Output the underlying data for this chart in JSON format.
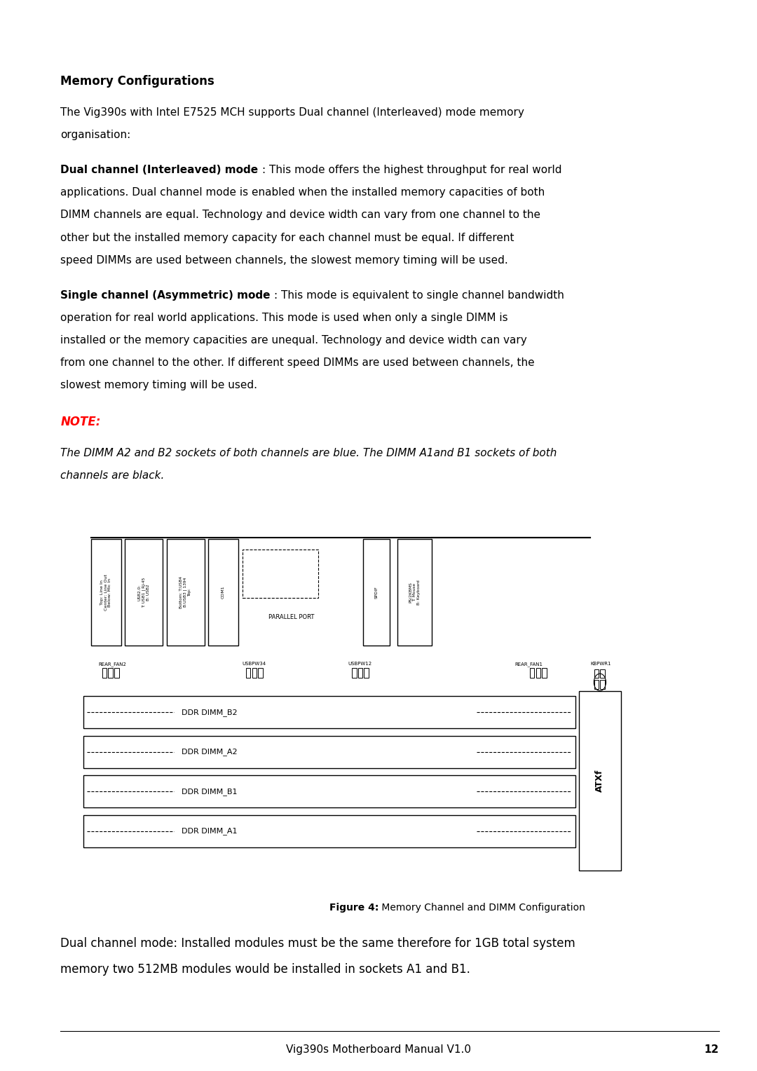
{
  "bg_color": "#ffffff",
  "text_color": "#000000",
  "page_width": 10.8,
  "page_height": 15.28,
  "title": "Memory Configurations",
  "intro": "The Vig390s with Intel E7525 MCH supports Dual channel (Interleaved) mode memory organisation:",
  "dual_channel_bold": "Dual channel (Interleaved) mode",
  "dual_channel_text": ": This mode offers the highest throughput for real world applications. Dual channel mode is enabled when the installed memory capacities of both DIMM channels are equal. Technology and device width can vary from one channel to the other but the installed memory capacity for each channel must be equal. If different speed DIMMs are used between channels, the slowest memory timing will be used.",
  "single_channel_bold": "Single channel (Asymmetric) mode",
  "single_channel_text": ": This mode is equivalent to single channel bandwidth operation for real world applications. This mode is used when only a single DIMM is installed or the memory capacities are unequal. Technology and device width can vary from one channel to the other. If different speed DIMMs are used between channels, the slowest memory timing will be used.",
  "note_label": "NOTE:",
  "note_text": "The DIMM A2 and B2 sockets of both channels are blue. The DIMM A1and B1 sockets of both channels are black.",
  "figure_bold": "Figure 4:",
  "figure_text": " Memory Channel and DIMM Configuration",
  "dual_closing": "Dual channel mode: Installed modules must be the same therefore for 1GB total system memory two 512MB modules would be installed in sockets A1 and B1.",
  "footer_text": "Vig390s Motherboard Manual V1.0",
  "footer_page": "12"
}
